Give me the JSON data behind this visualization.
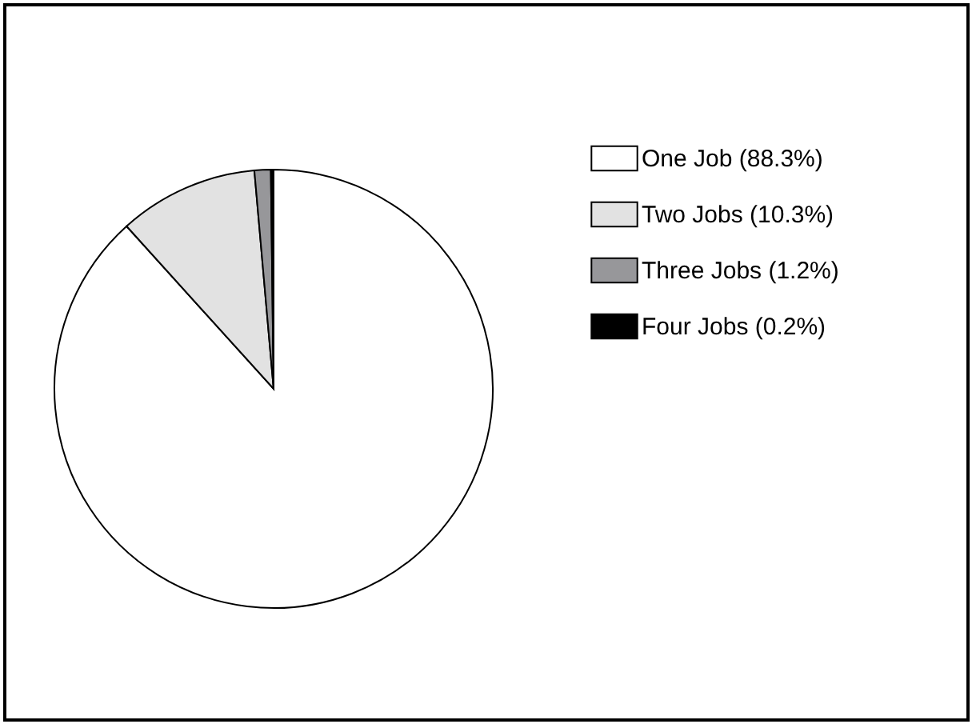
{
  "chart_data": {
    "type": "pie",
    "categories": [
      "One Job (88.3%)",
      "Two Jobs (10.3%)",
      "Three Jobs (1.2%)",
      "Four Jobs (0.2%)"
    ],
    "values": [
      88.3,
      10.3,
      1.2,
      0.2
    ],
    "colors": [
      "#ffffff",
      "#e2e2e2",
      "#97979a",
      "#000000"
    ],
    "legend": "top right"
  }
}
